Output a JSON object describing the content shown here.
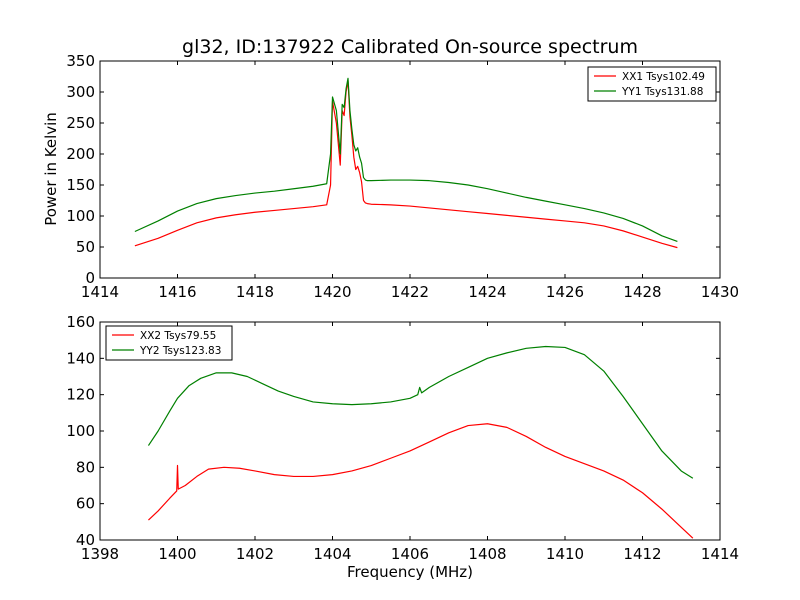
{
  "chart_data": [
    {
      "type": "line",
      "title": "gl32, ID:137922 Calibrated On-source spectrum",
      "xlabel": "",
      "ylabel": "Power in Kelvin",
      "xlim": [
        1414,
        1430
      ],
      "ylim": [
        0,
        350
      ],
      "xticks": [
        "1414",
        "1416",
        "1418",
        "1420",
        "1422",
        "1424",
        "1426",
        "1428",
        "1430"
      ],
      "yticks": [
        "0",
        "50",
        "100",
        "150",
        "200",
        "250",
        "300",
        "350"
      ],
      "legend_position": "top-right",
      "series": [
        {
          "name": "XX1 Tsys102.49",
          "color": "#ff0000",
          "x": [
            1414.9,
            1415.5,
            1416.0,
            1416.5,
            1417.0,
            1417.5,
            1418.0,
            1418.5,
            1419.0,
            1419.5,
            1419.85,
            1419.95,
            1420.0,
            1420.1,
            1420.2,
            1420.25,
            1420.3,
            1420.35,
            1420.4,
            1420.45,
            1420.5,
            1420.55,
            1420.6,
            1420.65,
            1420.7,
            1420.75,
            1420.8,
            1420.85,
            1420.9,
            1421.0,
            1421.5,
            1422.0,
            1422.5,
            1423.0,
            1423.5,
            1424.0,
            1424.5,
            1425.0,
            1425.5,
            1426.0,
            1426.5,
            1427.0,
            1427.5,
            1428.0,
            1428.5,
            1428.9
          ],
          "y": [
            52,
            64,
            77,
            89,
            97,
            102,
            106,
            109,
            112,
            115,
            118,
            150,
            285,
            250,
            182,
            270,
            262,
            300,
            318,
            260,
            230,
            195,
            175,
            180,
            170,
            155,
            125,
            121,
            120,
            119,
            118,
            116,
            113,
            110,
            107,
            104,
            101,
            98,
            95,
            92,
            89,
            84,
            76,
            66,
            56,
            49
          ]
        },
        {
          "name": "YY1 Tsys131.88",
          "color": "#008000",
          "x": [
            1414.9,
            1415.5,
            1416.0,
            1416.5,
            1417.0,
            1417.5,
            1418.0,
            1418.5,
            1419.0,
            1419.5,
            1419.85,
            1419.95,
            1420.0,
            1420.1,
            1420.2,
            1420.25,
            1420.3,
            1420.35,
            1420.4,
            1420.45,
            1420.5,
            1420.55,
            1420.6,
            1420.65,
            1420.7,
            1420.75,
            1420.8,
            1420.85,
            1420.9,
            1421.0,
            1421.5,
            1422.0,
            1422.5,
            1423.0,
            1423.5,
            1424.0,
            1424.5,
            1425.0,
            1425.5,
            1426.0,
            1426.5,
            1427.0,
            1427.5,
            1428.0,
            1428.5,
            1428.9
          ],
          "y": [
            75,
            92,
            108,
            120,
            128,
            133,
            137,
            140,
            144,
            148,
            152,
            200,
            292,
            270,
            200,
            280,
            275,
            305,
            322,
            270,
            240,
            215,
            205,
            210,
            195,
            185,
            162,
            158,
            157,
            157,
            158,
            158,
            157,
            154,
            150,
            144,
            137,
            130,
            124,
            118,
            112,
            105,
            96,
            84,
            68,
            59
          ]
        }
      ]
    },
    {
      "type": "line",
      "title": "",
      "xlabel": "Frequency (MHz)",
      "ylabel": "",
      "xlim": [
        1398,
        1414
      ],
      "ylim": [
        40,
        160
      ],
      "xticks": [
        "1398",
        "1400",
        "1402",
        "1404",
        "1406",
        "1408",
        "1410",
        "1412",
        "1414"
      ],
      "yticks": [
        "40",
        "60",
        "80",
        "100",
        "120",
        "140",
        "160"
      ],
      "legend_position": "top-left",
      "series": [
        {
          "name": "XX2 Tsys79.55",
          "color": "#ff0000",
          "x": [
            1399.25,
            1399.5,
            1399.8,
            1399.98,
            1400.0,
            1400.02,
            1400.2,
            1400.5,
            1400.8,
            1401.2,
            1401.6,
            1402.0,
            1402.5,
            1403.0,
            1403.5,
            1404.0,
            1404.5,
            1405.0,
            1405.5,
            1406.0,
            1406.5,
            1407.0,
            1407.5,
            1408.0,
            1408.5,
            1409.0,
            1409.5,
            1410.0,
            1410.5,
            1411.0,
            1411.5,
            1412.0,
            1412.5,
            1413.0,
            1413.3
          ],
          "y": [
            51,
            56,
            63,
            67,
            81,
            68,
            70,
            75,
            79,
            80,
            79.5,
            78,
            76,
            75,
            75,
            76,
            78,
            81,
            85,
            89,
            94,
            99,
            103,
            104,
            102,
            97,
            91,
            86,
            82,
            78,
            73,
            66,
            57,
            47,
            41
          ]
        },
        {
          "name": "YY2 Tsys123.83",
          "color": "#008000",
          "x": [
            1399.25,
            1399.5,
            1399.8,
            1400.0,
            1400.3,
            1400.6,
            1401.0,
            1401.4,
            1401.8,
            1402.2,
            1402.6,
            1403.0,
            1403.5,
            1404.0,
            1404.5,
            1405.0,
            1405.5,
            1406.0,
            1406.2,
            1406.25,
            1406.3,
            1406.5,
            1407.0,
            1407.5,
            1408.0,
            1408.5,
            1409.0,
            1409.5,
            1410.0,
            1410.5,
            1411.0,
            1411.5,
            1412.0,
            1412.5,
            1413.0,
            1413.3
          ],
          "y": [
            92,
            100,
            111,
            118,
            125,
            129,
            132,
            132,
            130,
            126,
            122,
            119,
            116,
            115,
            114.5,
            115,
            116,
            118,
            120,
            124,
            121,
            124,
            130,
            135,
            140,
            143,
            145.5,
            146.5,
            146,
            142,
            133,
            119,
            104,
            89,
            78,
            74
          ]
        }
      ]
    }
  ]
}
